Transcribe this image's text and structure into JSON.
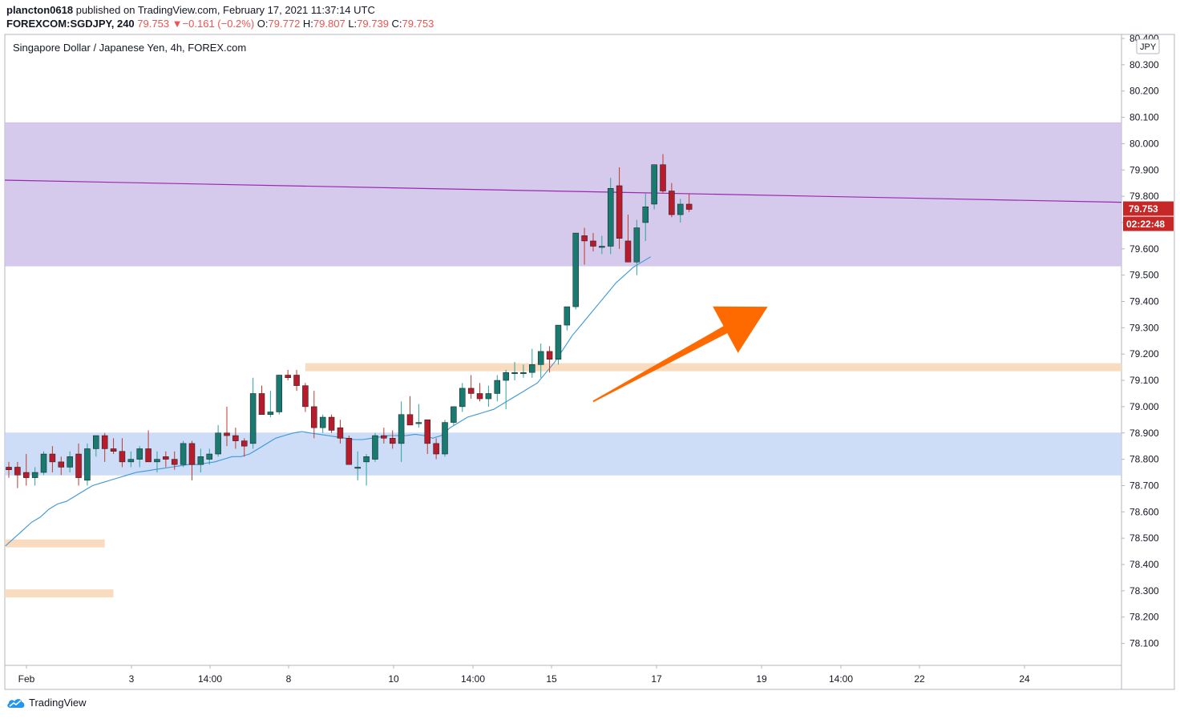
{
  "header": {
    "author": "plancton0618",
    "published_text": "published on TradingView.com, February 17, 2021 11:37:14 UTC",
    "symbol": "FOREXCOM:SGDJPY, 240",
    "last_price": "79.753",
    "change_arrow": "▼",
    "change": "−0.161 (−0.2%)",
    "open_label": "O:",
    "open": "79.772",
    "high_label": "H:",
    "high": "79.807",
    "low_label": "L:",
    "low": "79.739",
    "close_label": "C:",
    "close": "79.753"
  },
  "footer": {
    "brand": "TradingView"
  },
  "colors": {
    "up": "#26a69a",
    "up_body": "#187a70",
    "down": "#c0392b",
    "down_body": "#b71c2c",
    "resistance_zone": "#d5c9ec",
    "support_zone": "#cddcf7",
    "level_line": "#f9dcbf",
    "trendline": "#9c27b0",
    "ma": "#3d97da",
    "arrow": "#ff6a00",
    "price_tag": "#c62828"
  },
  "chart_data": {
    "type": "candlestick",
    "title": "Singapore Dollar / Japanese Yen, 4h, FOREX.com",
    "currency_badge": "JPY",
    "ylim": [
      78.0,
      80.4
    ],
    "y_ticks": [
      "80.400",
      "80.300",
      "80.200",
      "80.100",
      "80.000",
      "79.900",
      "79.800",
      "79.700",
      "79.600",
      "79.500",
      "79.400",
      "79.300",
      "79.200",
      "79.100",
      "79.000",
      "78.900",
      "78.800",
      "78.700",
      "78.600",
      "78.500",
      "78.400",
      "78.300",
      "78.200",
      "78.100"
    ],
    "x_ticks": [
      "Feb",
      "3",
      "14:00",
      "8",
      "10",
      "14:00",
      "15",
      "17",
      "19",
      "14:00",
      "22",
      "24"
    ],
    "last_price_label": "79.753",
    "countdown_label": "02:22:48",
    "candles": [
      [
        78.77,
        78.79,
        78.73,
        78.76
      ],
      [
        78.77,
        78.79,
        78.69,
        78.74
      ],
      [
        78.75,
        78.82,
        78.7,
        78.73
      ],
      [
        78.73,
        78.77,
        78.7,
        78.75
      ],
      [
        78.75,
        78.83,
        78.74,
        78.82
      ],
      [
        78.82,
        78.85,
        78.75,
        78.79
      ],
      [
        78.79,
        78.81,
        78.74,
        78.77
      ],
      [
        78.77,
        78.83,
        78.75,
        78.81
      ],
      [
        78.82,
        78.86,
        78.7,
        78.73
      ],
      [
        78.72,
        78.86,
        78.7,
        78.84
      ],
      [
        78.84,
        78.89,
        78.81,
        78.89
      ],
      [
        78.89,
        78.9,
        78.79,
        78.84
      ],
      [
        78.84,
        78.88,
        78.82,
        78.83
      ],
      [
        78.83,
        78.88,
        78.77,
        78.79
      ],
      [
        78.79,
        78.83,
        78.77,
        78.8
      ],
      [
        78.8,
        78.85,
        78.77,
        78.84
      ],
      [
        78.84,
        78.91,
        78.79,
        78.79
      ],
      [
        78.79,
        78.83,
        78.75,
        78.8
      ],
      [
        78.81,
        78.83,
        78.77,
        78.8
      ],
      [
        78.8,
        78.83,
        78.76,
        78.78
      ],
      [
        78.78,
        78.87,
        78.77,
        78.86
      ],
      [
        78.86,
        78.87,
        78.72,
        78.78
      ],
      [
        78.78,
        78.84,
        78.75,
        78.81
      ],
      [
        78.8,
        78.84,
        78.78,
        78.82
      ],
      [
        78.82,
        78.93,
        78.81,
        78.9
      ],
      [
        78.9,
        79.0,
        78.85,
        78.89
      ],
      [
        78.89,
        78.92,
        78.84,
        78.87
      ],
      [
        78.87,
        78.88,
        78.81,
        78.85
      ],
      [
        78.86,
        79.11,
        78.84,
        79.05
      ],
      [
        79.05,
        79.08,
        78.99,
        78.97
      ],
      [
        78.97,
        79.06,
        78.96,
        78.98
      ],
      [
        78.98,
        79.12,
        78.97,
        79.12
      ],
      [
        79.12,
        79.14,
        79.1,
        79.11
      ],
      [
        79.12,
        79.14,
        79.06,
        79.08
      ],
      [
        79.08,
        79.09,
        78.98,
        79.0
      ],
      [
        79.0,
        79.06,
        78.88,
        78.92
      ],
      [
        78.92,
        78.97,
        78.9,
        78.96
      ],
      [
        78.96,
        78.97,
        78.9,
        78.91
      ],
      [
        78.92,
        78.95,
        78.86,
        78.88
      ],
      [
        78.88,
        78.89,
        78.78,
        78.78
      ],
      [
        78.77,
        78.83,
        78.72,
        78.77
      ],
      [
        78.79,
        78.82,
        78.7,
        78.81
      ],
      [
        78.8,
        78.9,
        78.79,
        78.89
      ],
      [
        78.89,
        78.92,
        78.86,
        78.88
      ],
      [
        78.88,
        78.91,
        78.84,
        78.86
      ],
      [
        78.86,
        79.02,
        78.79,
        78.97
      ],
      [
        78.97,
        79.04,
        78.93,
        78.93
      ],
      [
        78.94,
        79.01,
        78.92,
        78.94
      ],
      [
        78.95,
        78.95,
        78.82,
        78.86
      ],
      [
        78.86,
        78.88,
        78.8,
        78.82
      ],
      [
        78.82,
        78.95,
        78.81,
        78.94
      ],
      [
        78.94,
        79.0,
        78.93,
        79.0
      ],
      [
        79.0,
        79.09,
        78.98,
        79.07
      ],
      [
        79.07,
        79.12,
        79.03,
        79.05
      ],
      [
        79.05,
        79.09,
        79.02,
        79.03
      ],
      [
        79.03,
        79.08,
        79.0,
        79.05
      ],
      [
        79.05,
        79.12,
        79.02,
        79.1
      ],
      [
        79.1,
        79.14,
        78.99,
        79.13
      ],
      [
        79.13,
        79.17,
        79.1,
        79.13
      ],
      [
        79.13,
        79.16,
        79.11,
        79.13
      ],
      [
        79.13,
        79.22,
        79.11,
        79.16
      ],
      [
        79.16,
        79.24,
        79.11,
        79.21
      ],
      [
        79.21,
        79.23,
        79.13,
        79.18
      ],
      [
        79.18,
        79.31,
        79.16,
        79.31
      ],
      [
        79.31,
        79.37,
        79.29,
        79.38
      ],
      [
        79.38,
        79.66,
        79.37,
        79.66
      ],
      [
        79.65,
        79.68,
        79.54,
        79.63
      ],
      [
        79.63,
        79.66,
        79.59,
        79.61
      ],
      [
        79.61,
        79.65,
        79.58,
        79.61
      ],
      [
        79.61,
        79.87,
        79.58,
        79.83
      ],
      [
        79.84,
        79.91,
        79.6,
        79.64
      ],
      [
        79.63,
        79.73,
        79.55,
        79.55
      ],
      [
        79.55,
        79.71,
        79.5,
        79.68
      ],
      [
        79.7,
        79.81,
        79.63,
        79.76
      ],
      [
        79.77,
        79.92,
        79.75,
        79.92
      ],
      [
        79.92,
        79.96,
        79.81,
        79.82
      ],
      [
        79.82,
        79.85,
        79.72,
        79.73
      ],
      [
        79.73,
        79.79,
        79.7,
        79.77
      ],
      [
        79.77,
        79.81,
        79.74,
        79.75
      ]
    ],
    "moving_average": [
      78.47,
      78.5,
      78.53,
      78.56,
      78.58,
      78.61,
      78.63,
      78.64,
      78.66,
      78.68,
      78.7,
      78.71,
      78.72,
      78.73,
      78.74,
      78.75,
      78.755,
      78.76,
      78.765,
      78.77,
      78.775,
      78.78,
      78.78,
      78.785,
      78.79,
      78.8,
      78.81,
      78.81,
      78.82,
      78.84,
      78.86,
      78.88,
      78.89,
      78.9,
      78.905,
      78.9,
      78.895,
      78.89,
      78.885,
      78.88,
      78.875,
      78.875,
      78.88,
      78.885,
      78.89,
      78.89,
      78.89,
      78.895,
      78.89,
      78.88,
      78.89,
      78.92,
      78.94,
      78.96,
      78.97,
      78.98,
      78.99,
      79.01,
      79.03,
      79.05,
      79.07,
      79.09,
      79.13,
      79.17,
      79.22,
      79.27,
      79.31,
      79.35,
      79.39,
      79.43,
      79.47,
      79.5,
      79.53,
      79.55,
      79.57
    ],
    "zones": [
      {
        "name": "resistance-zone",
        "top": 80.08,
        "bottom": 79.535
      },
      {
        "name": "support-zone",
        "top": 78.9,
        "bottom": 78.74
      }
    ],
    "levels": [
      {
        "name": "level-79-15",
        "price": 79.15,
        "from_candle": 34,
        "to_candle": 144
      },
      {
        "name": "level-78-48",
        "price": 78.48,
        "from_candle": -14,
        "to_candle": 11
      },
      {
        "name": "level-78-29",
        "price": 78.29,
        "from_candle": -14,
        "to_candle": 12
      }
    ],
    "trendline": {
      "from_candle": -14,
      "from_price": 79.87,
      "to_candle": 184,
      "to_price": 79.74
    },
    "arrow": {
      "from_candle": 67,
      "from_price": 79.02,
      "to_candle": 87,
      "to_price": 79.38
    },
    "grid": false,
    "legend": "none"
  }
}
